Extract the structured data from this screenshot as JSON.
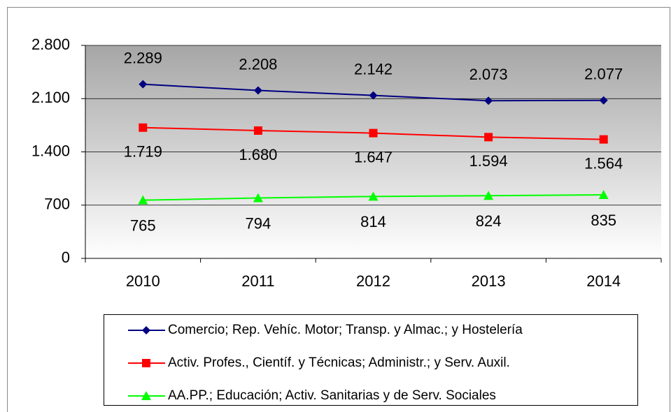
{
  "chart_data": {
    "type": "line",
    "categories": [
      "2010",
      "2011",
      "2012",
      "2013",
      "2014"
    ],
    "series": [
      {
        "name": "Comercio; Rep. Vehíc. Motor; Transp. y Almac.; y Hostelería",
        "color": "#000080",
        "marker": "diamond",
        "values": [
          2289,
          2208,
          2142,
          2073,
          2077
        ],
        "value_labels": [
          "2.289",
          "2.208",
          "2.142",
          "2.073",
          "2.077"
        ]
      },
      {
        "name": "Activ. Profes., Científ. y Técnicas; Administr.; y Serv. Auxil.",
        "color": "#ff0000",
        "marker": "square",
        "values": [
          1719,
          1680,
          1647,
          1594,
          1564
        ],
        "value_labels": [
          "1.719",
          "1.680",
          "1.647",
          "1.594",
          "1.564"
        ]
      },
      {
        "name": "AA.PP.; Educación; Activ. Sanitarias y de Serv. Sociales",
        "color": "#00ff00",
        "marker": "triangle",
        "values": [
          765,
          794,
          814,
          824,
          835
        ],
        "value_labels": [
          "765",
          "794",
          "814",
          "824",
          "835"
        ]
      }
    ],
    "ylim": [
      0,
      2800
    ],
    "yticks": [
      0,
      700,
      {
        "value": 1400,
        "label": "1.400"
      },
      {
        "value": 2100,
        "label": "2.100"
      },
      {
        "value": 2800,
        "label": "2.800"
      }
    ],
    "grid": true,
    "legend": "bottom"
  }
}
